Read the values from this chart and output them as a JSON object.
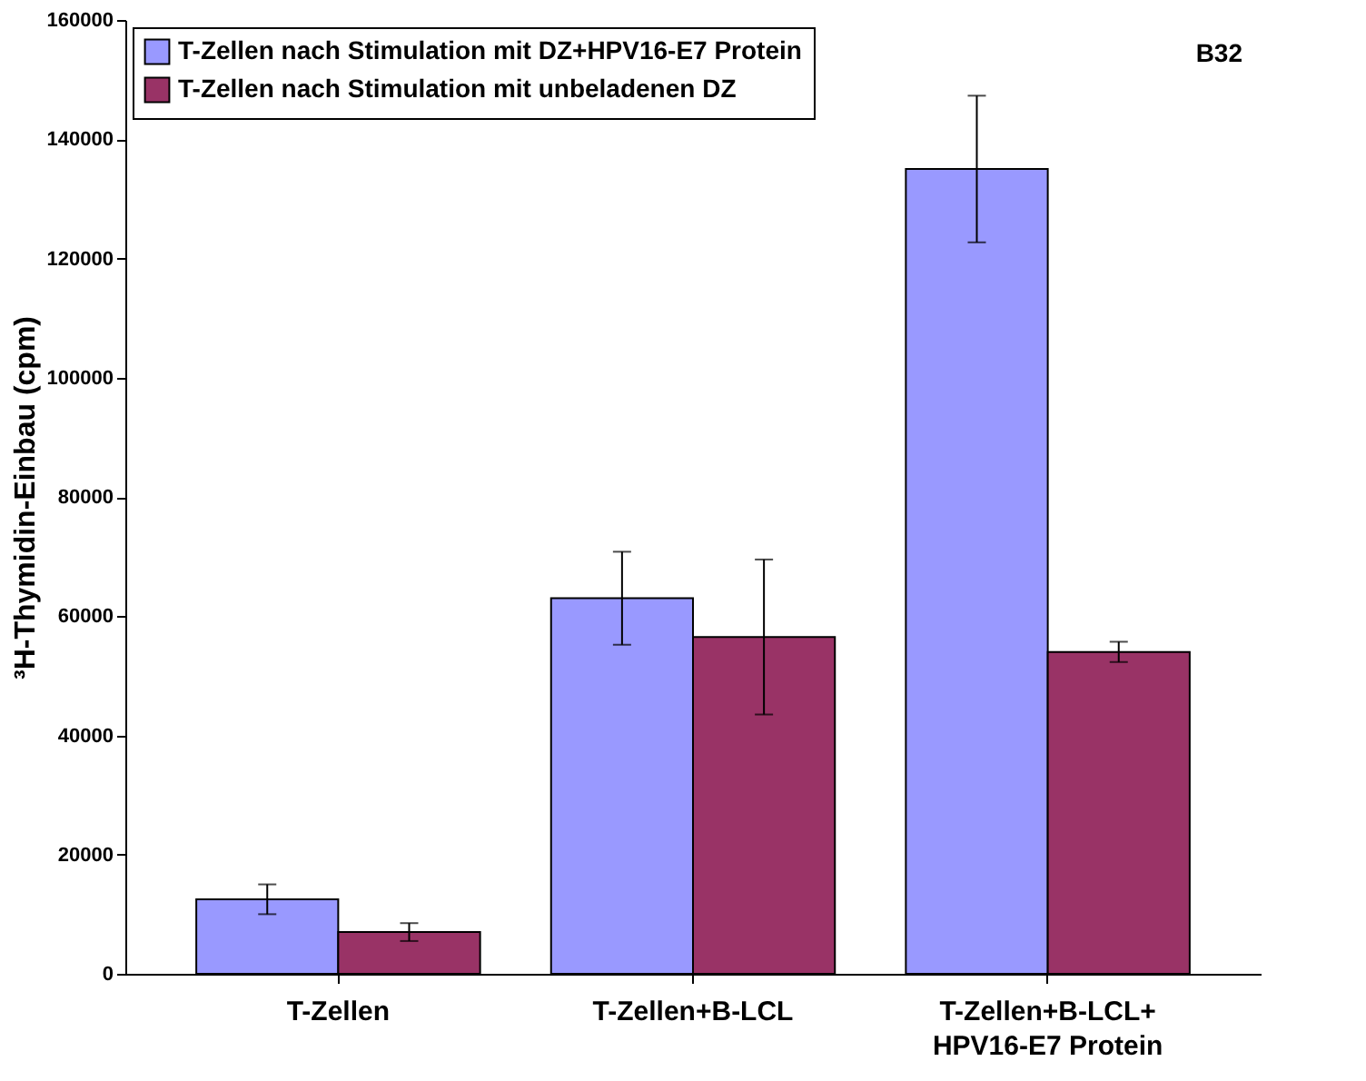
{
  "chart_data": {
    "type": "bar",
    "categories": [
      "T-Zellen",
      "T-Zellen+B-LCL",
      "T-Zellen+B-LCL+\nHPV16-E7 Protein"
    ],
    "series": [
      {
        "name": "T-Zellen nach Stimulation mit DZ+HPV16-E7 Protein",
        "color": "#9999ff",
        "values": [
          12500,
          63000,
          135000
        ],
        "errors": [
          2500,
          7800,
          12300
        ]
      },
      {
        "name": "T-Zellen nach Stimulation mit unbeladenen DZ",
        "color": "#993366",
        "values": [
          7000,
          56500,
          54000
        ],
        "errors": [
          1500,
          13000,
          1700
        ]
      }
    ],
    "ylabel": "³H-Thymidin-Einbau (cpm)",
    "ylim": [
      0,
      160000
    ],
    "yticks": [
      0,
      20000,
      40000,
      60000,
      80000,
      100000,
      120000,
      140000,
      160000
    ],
    "annotations": [
      "B32"
    ],
    "legend": "top left",
    "grid": false
  }
}
